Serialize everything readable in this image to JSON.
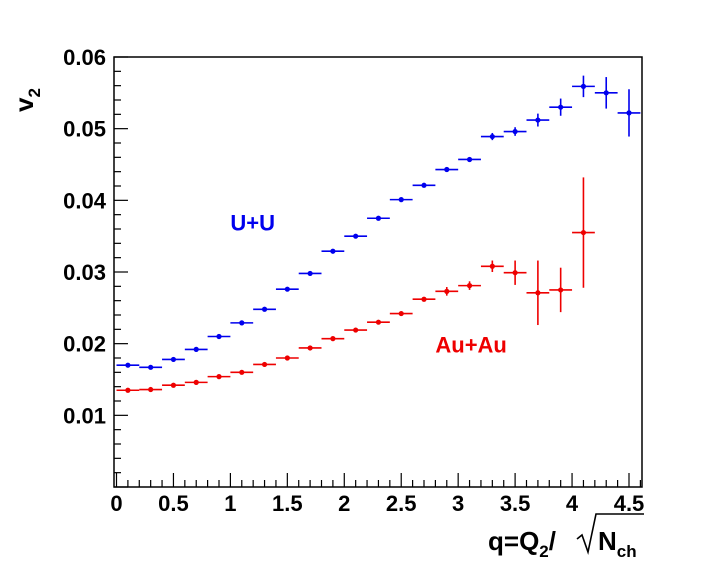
{
  "chart_data": {
    "type": "scatter",
    "xlabel": "q=Q2/√Nch",
    "ylabel": "v2",
    "xlim": [
      0,
      4.6
    ],
    "ylim": [
      0,
      0.06
    ],
    "xticks": [
      "0",
      "0.5",
      "1",
      "1.5",
      "2",
      "2.5",
      "3",
      "3.5",
      "4",
      "4.5"
    ],
    "yticks": [
      "0.01",
      "0.02",
      "0.03",
      "0.04",
      "0.05",
      "0.06"
    ],
    "grid": false,
    "legend": "inline labels",
    "series": [
      {
        "name": "U+U",
        "color": "#0000ee",
        "label_pos": [
          1.0,
          0.0358
        ],
        "x": [
          0.1,
          0.3,
          0.5,
          0.7,
          0.9,
          1.1,
          1.3,
          1.5,
          1.7,
          1.9,
          2.1,
          2.3,
          2.5,
          2.7,
          2.9,
          3.1,
          3.3,
          3.5,
          3.7,
          3.9,
          4.1,
          4.3,
          4.5
        ],
        "y": [
          0.017,
          0.0167,
          0.0178,
          0.0192,
          0.021,
          0.0229,
          0.0248,
          0.0276,
          0.0298,
          0.0329,
          0.035,
          0.0375,
          0.0401,
          0.0421,
          0.0443,
          0.0457,
          0.0489,
          0.0496,
          0.0512,
          0.053,
          0.0559,
          0.055,
          0.0522
        ],
        "yerr": [
          0.0003,
          0.0003,
          0.0003,
          0.0003,
          0.0003,
          0.0003,
          0.0003,
          0.0003,
          0.0003,
          0.0003,
          0.0003,
          0.0003,
          0.0003,
          0.0003,
          0.0003,
          0.0003,
          0.0005,
          0.0006,
          0.0009,
          0.0012,
          0.0015,
          0.0022,
          0.0033
        ]
      },
      {
        "name": "Au+Au",
        "color": "#ee0000",
        "label_pos": [
          2.8,
          0.0188
        ],
        "x": [
          0.1,
          0.3,
          0.5,
          0.7,
          0.9,
          1.1,
          1.3,
          1.5,
          1.7,
          1.9,
          2.1,
          2.3,
          2.5,
          2.7,
          2.9,
          3.1,
          3.3,
          3.5,
          3.7,
          3.9,
          4.1
        ],
        "y": [
          0.0135,
          0.0136,
          0.0142,
          0.0146,
          0.0154,
          0.016,
          0.0171,
          0.018,
          0.0194,
          0.0207,
          0.0219,
          0.023,
          0.0242,
          0.0262,
          0.0273,
          0.0281,
          0.0308,
          0.0299,
          0.0271,
          0.0275,
          0.0355
        ],
        "yerr": [
          0.0003,
          0.0003,
          0.0003,
          0.0003,
          0.0003,
          0.0003,
          0.0003,
          0.0003,
          0.0003,
          0.0003,
          0.0003,
          0.0003,
          0.0003,
          0.0003,
          0.0006,
          0.0006,
          0.0008,
          0.0017,
          0.0045,
          0.0031,
          0.0077
        ]
      }
    ]
  }
}
